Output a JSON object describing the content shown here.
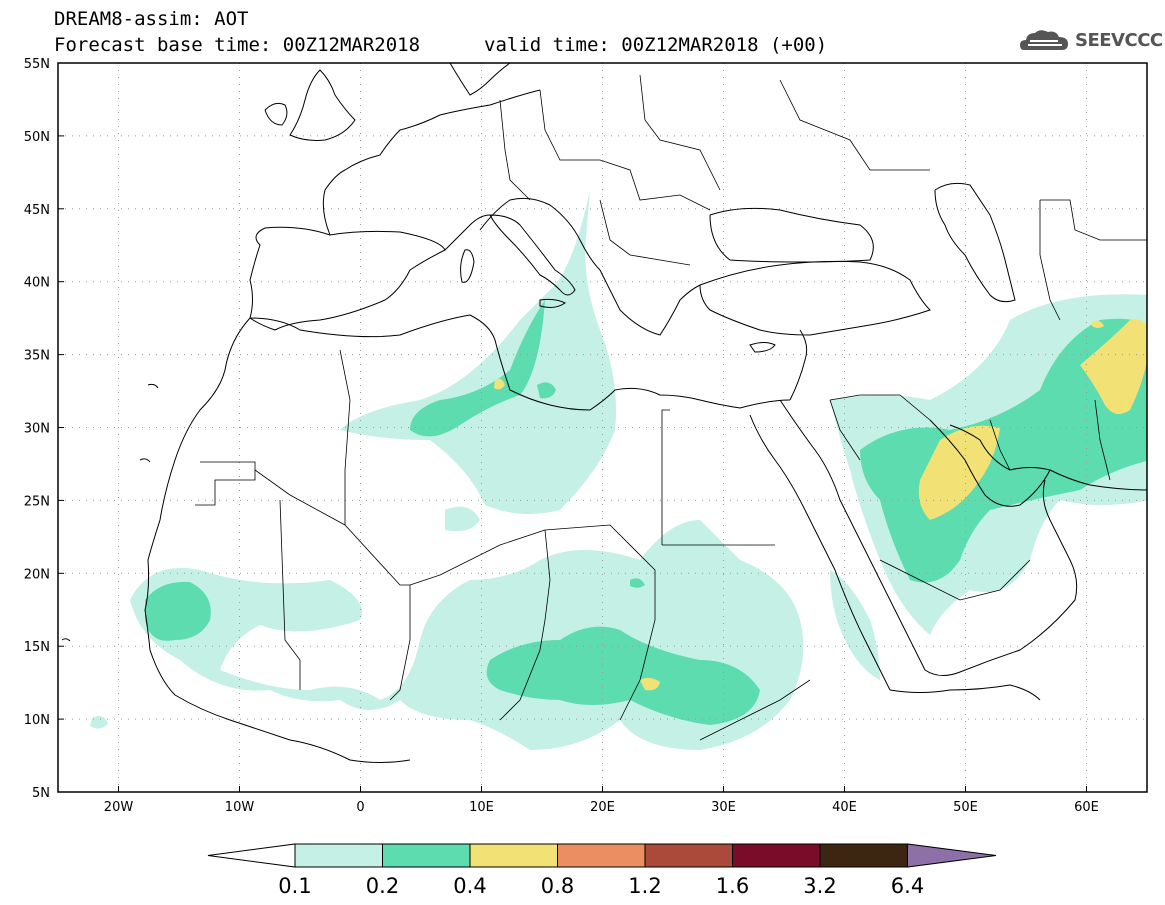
{
  "title": {
    "line1": "DREAM8-assim: AOT",
    "line2": "Forecast base time: 00Z12MAR2018",
    "valid": "valid time: 00Z12MAR2018 (+00)"
  },
  "logo": {
    "text": "SEEVCCC",
    "icon": "cloud-icon"
  },
  "axes": {
    "lon_labels": [
      "20W",
      "10W",
      "0",
      "10E",
      "20E",
      "30E",
      "40E",
      "50E",
      "60E"
    ],
    "lat_labels": [
      "55N",
      "50N",
      "45N",
      "40N",
      "35N",
      "30N",
      "25N",
      "20N",
      "15N",
      "10N",
      "5N"
    ],
    "lon_range": [
      -25,
      65
    ],
    "lat_range": [
      5,
      55
    ],
    "grid": "dotted"
  },
  "colorbar": {
    "labels": [
      "0.1",
      "0.2",
      "0.4",
      "0.8",
      "1.2",
      "1.6",
      "3.2",
      "6.4"
    ],
    "colors": [
      "#ffffff",
      "#c4f0e6",
      "#5ddcb0",
      "#f2e276",
      "#eb8f63",
      "#ab4a3b",
      "#7a0b29",
      "#3d2611",
      "#8e70a8"
    ]
  },
  "field_colors": {
    "level1": "#c4f0e6",
    "level2": "#5ddcb0",
    "level3": "#f2e276"
  }
}
